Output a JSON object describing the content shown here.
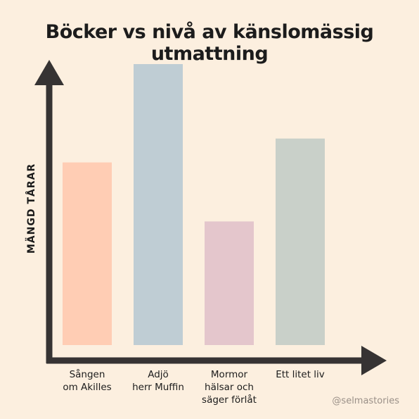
{
  "chart_data": {
    "type": "bar",
    "title": "Böcker vs nivå av känslomässig utmattning",
    "ylabel": "MÄNGD TÅRAR",
    "xlabel": "",
    "categories": [
      "Sången\nom Akilles",
      "Adjö\nherr Muffin",
      "Mormor\nhälsar och\nsäger förlåt",
      "Ett litet liv"
    ],
    "values": [
      65,
      100,
      44,
      73.5
    ],
    "ylim": [
      0,
      100
    ],
    "grid": false,
    "colors": [
      "#ffcdb4",
      "#bfcdd4",
      "#e4c6cc",
      "#c9d0c9"
    ],
    "axis_color": "#363333"
  },
  "credit": "@selmastories"
}
